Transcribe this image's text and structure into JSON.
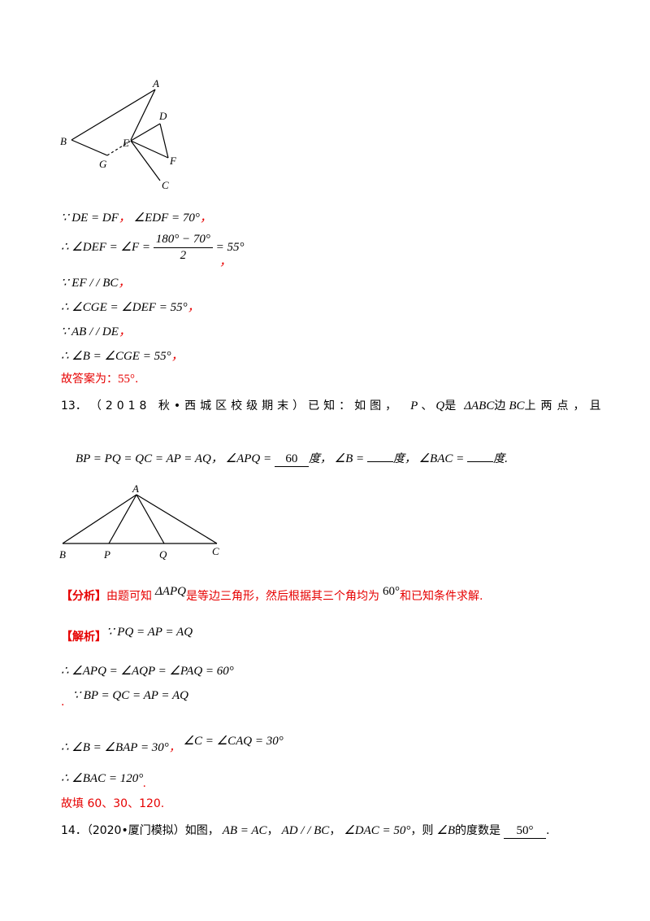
{
  "figure1": {
    "labels": {
      "A": "A",
      "B": "B",
      "C": "C",
      "D": "D",
      "E": "E",
      "F": "F",
      "G": "G"
    }
  },
  "solution12": {
    "line1": "∵ DE = DF",
    "line1_sep": "，",
    "line1b": "∠EDF = 70°",
    "line1_end": "，",
    "line2_pre": "∴ ∠DEF = ∠F =",
    "line2_num": "180° − 70°",
    "line2_den": "2",
    "line2_post": "= 55°",
    "line2_end": "，",
    "line3": "∵ EF / / BC",
    "line3_end": "，",
    "line4": "∴ ∠CGE = ∠DEF = 55°",
    "line4_end": "，",
    "line5": "∵ AB / / DE",
    "line5_end": "，",
    "line6": "∴ ∠B = ∠CGE = 55°",
    "line6_end": "，",
    "answer_label": "故答案为：",
    "answer_value": "55°",
    "answer_end": "."
  },
  "problem13": {
    "number": "13．",
    "source": "（2018 秋•西城区校级期末）已知：如图，",
    "p": "P",
    "sep": "、",
    "q": "Q",
    "is": "是",
    "tri": "ΔABC",
    "edge": "边",
    "bc": "BC",
    "rest": "上两点，且",
    "condition": "BP = PQ = QC = AP = AQ",
    "comma1": "，",
    "q1": "∠APQ =",
    "blank1": "60",
    "unit1": "度，",
    "q2": "∠B =",
    "unit2": "度，",
    "q3": "∠BAC =",
    "unit3": "度."
  },
  "figure2": {
    "labels": {
      "A": "A",
      "B": "B",
      "P": "P",
      "Q": "Q",
      "C": "C"
    }
  },
  "analysis13": {
    "tag": "【分析】",
    "text1": "由题可知",
    "tri": "ΔAPQ",
    "text2": "是等边三角形，然后根据其三个角均为",
    "deg": "60°",
    "text3": "和已知条件求解."
  },
  "solution13": {
    "tag": "【解析】",
    "line1": "∵ PQ = AP = AQ",
    "line2": "∴ ∠APQ = ∠AQP = ∠PAQ = 60°",
    "line3_dot": ".",
    "line3": "∵ BP = QC = AP = AQ",
    "line4a": "∴ ∠B = ∠BAP = 30°",
    "line4_sep": "，",
    "line4b": "∠C = ∠CAQ = 30°",
    "line5": "∴ ∠BAC = 120°",
    "line5_end": ".",
    "answer": "故填 60、30、120."
  },
  "problem14": {
    "number": "14．",
    "source": "（2020•厦门模拟）如图，",
    "c1": "AB = AC",
    "s1": "，",
    "c2": "AD / / BC",
    "s2": "，",
    "c3": "∠DAC = 50°",
    "s3": "，则",
    "q": "∠B",
    "tail": "的度数是",
    "blank": "50°",
    "end": "."
  }
}
